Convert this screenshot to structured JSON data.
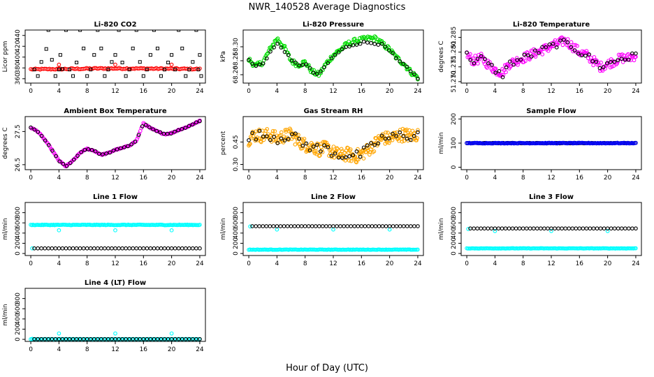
{
  "page_title": "NWR_140528  Average Diagnostics",
  "xlabel": "Hour of Day (UTC)",
  "x_ticks": [
    0,
    4,
    8,
    12,
    16,
    20,
    24
  ],
  "colors": {
    "black": "#000000",
    "red": "#ff0000",
    "green": "#00dd00",
    "magenta": "#ff00ff",
    "orange": "#ffa500",
    "blue": "#0000ff",
    "cyan": "#00ffff"
  },
  "chart_data": [
    {
      "type": "scatter",
      "title": "Li-820 CO2",
      "ylabel": "Licor ppm",
      "ylim": [
        352,
        450
      ],
      "yticks": [
        {
          "v": 360,
          "t": "360"
        },
        {
          "v": 380,
          "t": "380"
        },
        {
          "v": 400,
          "t": "400"
        },
        {
          "v": 420,
          "t": "420"
        },
        {
          "v": 440,
          "t": "440"
        }
      ],
      "series": [
        {
          "color": "red",
          "marker": "o",
          "kind": "band",
          "x0": 0,
          "x1": 24,
          "y": [
            377.5,
            378,
            379,
            379,
            378.5,
            378
          ],
          "spread": 1.2,
          "n": 110
        },
        {
          "color": "red",
          "marker": "o",
          "points": [
            [
              4,
              386
            ],
            [
              12,
              386
            ],
            [
              20,
              386
            ]
          ]
        },
        {
          "color": "black",
          "marker": "s",
          "points": [
            [
              0.5,
              377
            ],
            [
              1,
              365
            ],
            [
              1.5,
              391
            ],
            [
              2.2,
              415
            ],
            [
              2.5,
              450
            ],
            [
              3,
              395
            ],
            [
              3.5,
              365
            ],
            [
              4,
              377
            ],
            [
              4.2,
              404
            ],
            [
              4.5,
              378
            ],
            [
              5,
              450
            ],
            [
              5.5,
              377
            ],
            [
              6,
              365
            ],
            [
              6.5,
              390
            ],
            [
              7,
              450
            ],
            [
              7.5,
              416
            ],
            [
              8,
              365
            ],
            [
              8.5,
              377
            ],
            [
              9,
              404
            ],
            [
              9.5,
              450
            ],
            [
              10,
              416
            ],
            [
              10.5,
              365
            ],
            [
              11,
              377
            ],
            [
              11.5,
              391
            ],
            [
              12,
              404
            ],
            [
              12.5,
              450
            ],
            [
              13,
              390
            ],
            [
              13.5,
              365
            ],
            [
              14,
              377
            ],
            [
              14.5,
              416
            ],
            [
              15,
              450
            ],
            [
              15.5,
              391
            ],
            [
              16,
              365
            ],
            [
              16.5,
              377
            ],
            [
              17,
              404
            ],
            [
              17.5,
              450
            ],
            [
              18,
              416
            ],
            [
              18.5,
              365
            ],
            [
              19,
              377
            ],
            [
              19.5,
              390
            ],
            [
              20,
              404
            ],
            [
              20.5,
              377
            ],
            [
              21,
              450
            ],
            [
              21.5,
              416
            ],
            [
              22,
              365
            ],
            [
              22.5,
              377
            ],
            [
              23,
              391
            ],
            [
              23.5,
              450
            ],
            [
              24,
              404
            ],
            [
              24.2,
              365
            ],
            [
              23.8,
              377
            ]
          ]
        }
      ]
    },
    {
      "type": "scatter",
      "title": "Li-820 Pressure",
      "ylabel": "kPa",
      "ylim": [
        68.17,
        68.36
      ],
      "yticks": [
        {
          "v": 68.2,
          "t": "68.20"
        },
        {
          "v": 68.25,
          "t": "68.25"
        },
        {
          "v": 68.3,
          "t": "68.30"
        }
      ],
      "series": [
        {
          "color": "green",
          "marker": "o",
          "kind": "band",
          "x0": 0,
          "x1": 24,
          "y": [
            68.255,
            68.23,
            68.245,
            68.29,
            68.33,
            68.3,
            68.25,
            68.235,
            68.245,
            68.21,
            68.2,
            68.24,
            68.27,
            68.29,
            68.31,
            68.32,
            68.325,
            68.33,
            68.33,
            68.31,
            68.29,
            68.26,
            68.24,
            68.21,
            68.19
          ],
          "spread": 0.009,
          "n": 170
        },
        {
          "color": "black",
          "marker": "o",
          "kind": "band",
          "x0": 0,
          "x1": 24,
          "y": [
            68.25,
            68.23,
            68.24,
            68.28,
            68.31,
            68.29,
            68.25,
            68.235,
            68.24,
            68.21,
            68.2,
            68.235,
            68.265,
            68.285,
            68.3,
            68.31,
            68.315,
            68.315,
            68.315,
            68.305,
            68.285,
            68.255,
            68.235,
            68.21,
            68.19
          ],
          "spread": 0.005,
          "n": 48
        }
      ]
    },
    {
      "type": "scatter",
      "title": "Li-820 Temperature",
      "ylabel": "degrees C",
      "ylim": [
        51.2695,
        51.2875
      ],
      "yticks": [
        {
          "v": 51.27,
          "t": "51.270"
        },
        {
          "v": 51.275,
          "t": "51.275"
        },
        {
          "v": 51.28,
          "t": "51.280"
        },
        {
          "v": 51.285,
          "t": "51.285"
        }
      ],
      "series": [
        {
          "color": "magenta",
          "marker": "o",
          "kind": "band",
          "x0": 0,
          "x1": 24,
          "y": [
            51.279,
            51.277,
            51.278,
            51.276,
            51.274,
            51.273,
            51.276,
            51.277,
            51.278,
            51.279,
            51.28,
            51.281,
            51.282,
            51.283,
            51.284,
            51.282,
            51.28,
            51.279,
            51.277,
            51.275,
            51.276,
            51.277,
            51.278,
            51.278,
            51.279
          ],
          "spread": 0.0016,
          "n": 200
        },
        {
          "color": "black",
          "marker": "o",
          "kind": "band",
          "x0": 0,
          "x1": 24,
          "y": [
            51.279,
            51.277,
            51.278,
            51.276,
            51.274,
            51.272,
            51.276,
            51.277,
            51.278,
            51.279,
            51.28,
            51.281,
            51.282,
            51.283,
            51.283,
            51.282,
            51.28,
            51.279,
            51.277,
            51.275,
            51.276,
            51.277,
            51.278,
            51.278,
            51.279
          ],
          "spread": 0.0012,
          "n": 48
        }
      ]
    },
    {
      "type": "scatter",
      "title": "Ambient Box Temperature",
      "ylabel": "degrees C",
      "ylim": [
        26.35,
        27.95
      ],
      "yticks": [
        {
          "v": 26.5,
          "t": "26.5"
        },
        {
          "v": 27.5,
          "t": "27.5"
        }
      ],
      "series": [
        {
          "color": "magenta",
          "marker": "o",
          "kind": "band",
          "x0": 0,
          "x1": 24,
          "y": [
            27.62,
            27.5,
            27.25,
            26.95,
            26.62,
            26.45,
            26.62,
            26.86,
            26.98,
            26.92,
            26.8,
            26.85,
            26.95,
            27.0,
            27.08,
            27.22,
            27.75,
            27.6,
            27.5,
            27.42,
            27.45,
            27.55,
            27.62,
            27.72,
            27.82
          ],
          "spread": 0.015,
          "n": 160
        },
        {
          "color": "black",
          "marker": "o",
          "kind": "band",
          "x0": 0,
          "x1": 24,
          "y": [
            27.62,
            27.5,
            27.25,
            26.95,
            26.62,
            26.45,
            26.62,
            26.86,
            26.98,
            26.92,
            26.8,
            26.85,
            26.95,
            27.0,
            27.08,
            27.22,
            27.75,
            27.6,
            27.5,
            27.42,
            27.45,
            27.55,
            27.62,
            27.72,
            27.82
          ],
          "spread": 0.008,
          "n": 48
        }
      ]
    },
    {
      "type": "scatter",
      "title": "Gas Stream RH",
      "ylabel": "percent",
      "ylim": [
        0.265,
        0.62
      ],
      "yticks": [
        {
          "v": 0.3,
          "t": "0.30"
        },
        {
          "v": 0.45,
          "t": "0.45"
        }
      ],
      "series": [
        {
          "color": "orange",
          "marker": "o",
          "kind": "band",
          "x0": 0,
          "x1": 24,
          "y": [
            0.47,
            0.5,
            0.49,
            0.5,
            0.47,
            0.49,
            0.5,
            0.46,
            0.43,
            0.42,
            0.4,
            0.41,
            0.38,
            0.36,
            0.37,
            0.35,
            0.37,
            0.4,
            0.44,
            0.48,
            0.47,
            0.49,
            0.5,
            0.49,
            0.5
          ],
          "spread": 0.045,
          "n": 260
        },
        {
          "color": "black",
          "marker": "o",
          "kind": "band",
          "x0": 0,
          "x1": 24,
          "y": [
            0.47,
            0.5,
            0.49,
            0.5,
            0.47,
            0.49,
            0.5,
            0.46,
            0.43,
            0.42,
            0.4,
            0.41,
            0.38,
            0.36,
            0.37,
            0.35,
            0.37,
            0.4,
            0.44,
            0.48,
            0.47,
            0.49,
            0.5,
            0.49,
            0.5
          ],
          "spread": 0.035,
          "n": 48
        }
      ]
    },
    {
      "type": "scatter",
      "title": "Sample Flow",
      "ylabel": "ml/min",
      "ylim": [
        -10,
        210
      ],
      "yticks": [
        {
          "v": 0,
          "t": "0"
        },
        {
          "v": 100,
          "t": "100"
        },
        {
          "v": 200,
          "t": "200"
        }
      ],
      "series": [
        {
          "color": "black",
          "marker": "o",
          "kind": "band",
          "x0": 0,
          "x1": 24,
          "y": [
            100,
            100
          ],
          "spread": 1,
          "n": 130
        },
        {
          "color": "blue",
          "marker": "o",
          "kind": "band",
          "x0": 0,
          "x1": 24,
          "y": [
            100,
            100
          ],
          "spread": 1.5,
          "n": 130
        }
      ]
    },
    {
      "type": "scatter",
      "title": "Line 1 Flow",
      "ylabel": "ml/min",
      "ylim": [
        -40,
        1000
      ],
      "yticks": [
        {
          "v": 0,
          "t": "0"
        },
        {
          "v": 200,
          "t": "200"
        },
        {
          "v": 400,
          "t": "400"
        },
        {
          "v": 600,
          "t": "600"
        },
        {
          "v": 800,
          "t": "800"
        }
      ],
      "series": [
        {
          "color": "cyan",
          "marker": "o",
          "kind": "band",
          "x0": 0,
          "x1": 24,
          "y": [
            560,
            560
          ],
          "spread": 6,
          "n": 150
        },
        {
          "color": "cyan",
          "marker": "o",
          "points": [
            [
              0.2,
              100
            ],
            [
              4,
              455
            ],
            [
              12,
              455
            ],
            [
              20,
              455
            ]
          ]
        },
        {
          "color": "black",
          "marker": "o",
          "kind": "band",
          "x0": 0.5,
          "x1": 24,
          "y": [
            100,
            100
          ],
          "spread": 0,
          "n": 48
        }
      ]
    },
    {
      "type": "scatter",
      "title": "Line 2 Flow",
      "ylabel": "ml/min",
      "ylim": [
        -40,
        1000
      ],
      "yticks": [
        {
          "v": 0,
          "t": "0"
        },
        {
          "v": 200,
          "t": "200"
        },
        {
          "v": 400,
          "t": "400"
        },
        {
          "v": 600,
          "t": "600"
        },
        {
          "v": 800,
          "t": "800"
        }
      ],
      "series": [
        {
          "color": "cyan",
          "marker": "o",
          "kind": "band",
          "x0": 0,
          "x1": 24,
          "y": [
            75,
            75
          ],
          "spread": 4,
          "n": 150
        },
        {
          "color": "cyan",
          "marker": "o",
          "points": [
            [
              0.2,
              530
            ],
            [
              4,
              470
            ],
            [
              12,
              470
            ],
            [
              20,
              470
            ]
          ]
        },
        {
          "color": "black",
          "marker": "o",
          "kind": "band",
          "x0": 0.5,
          "x1": 24,
          "y": [
            535,
            535
          ],
          "spread": 0,
          "n": 48
        }
      ]
    },
    {
      "type": "scatter",
      "title": "Line 3 Flow",
      "ylabel": "ml/min",
      "ylim": [
        -40,
        1000
      ],
      "yticks": [
        {
          "v": 0,
          "t": "0"
        },
        {
          "v": 200,
          "t": "200"
        },
        {
          "v": 400,
          "t": "400"
        },
        {
          "v": 600,
          "t": "600"
        },
        {
          "v": 800,
          "t": "800"
        }
      ],
      "series": [
        {
          "color": "cyan",
          "marker": "o",
          "kind": "band",
          "x0": 0,
          "x1": 24,
          "y": [
            100,
            100
          ],
          "spread": 4,
          "n": 150
        },
        {
          "color": "cyan",
          "marker": "o",
          "points": [
            [
              0.2,
              480
            ],
            [
              4,
              440
            ],
            [
              12,
              440
            ],
            [
              20,
              440
            ]
          ]
        },
        {
          "color": "black",
          "marker": "o",
          "kind": "band",
          "x0": 0.5,
          "x1": 24,
          "y": [
            490,
            490
          ],
          "spread": 0,
          "n": 48
        }
      ]
    },
    {
      "type": "scatter",
      "title": "Line 4 (LT) Flow",
      "ylabel": "ml/min",
      "ylim": [
        -40,
        1000
      ],
      "yticks": [
        {
          "v": 0,
          "t": "0"
        },
        {
          "v": 200,
          "t": "200"
        },
        {
          "v": 400,
          "t": "400"
        },
        {
          "v": 600,
          "t": "600"
        },
        {
          "v": 800,
          "t": "800"
        }
      ],
      "series": [
        {
          "color": "cyan",
          "marker": "o",
          "kind": "band",
          "x0": 0,
          "x1": 24,
          "y": [
            5,
            5
          ],
          "spread": 2,
          "n": 120
        },
        {
          "color": "cyan",
          "marker": "o",
          "points": [
            [
              0.2,
              10
            ],
            [
              4,
              115
            ],
            [
              12,
              115
            ],
            [
              20,
              115
            ]
          ]
        },
        {
          "color": "black",
          "marker": "o",
          "kind": "band",
          "x0": 0.5,
          "x1": 24,
          "y": [
            5,
            5
          ],
          "spread": 0,
          "n": 48
        }
      ]
    }
  ]
}
